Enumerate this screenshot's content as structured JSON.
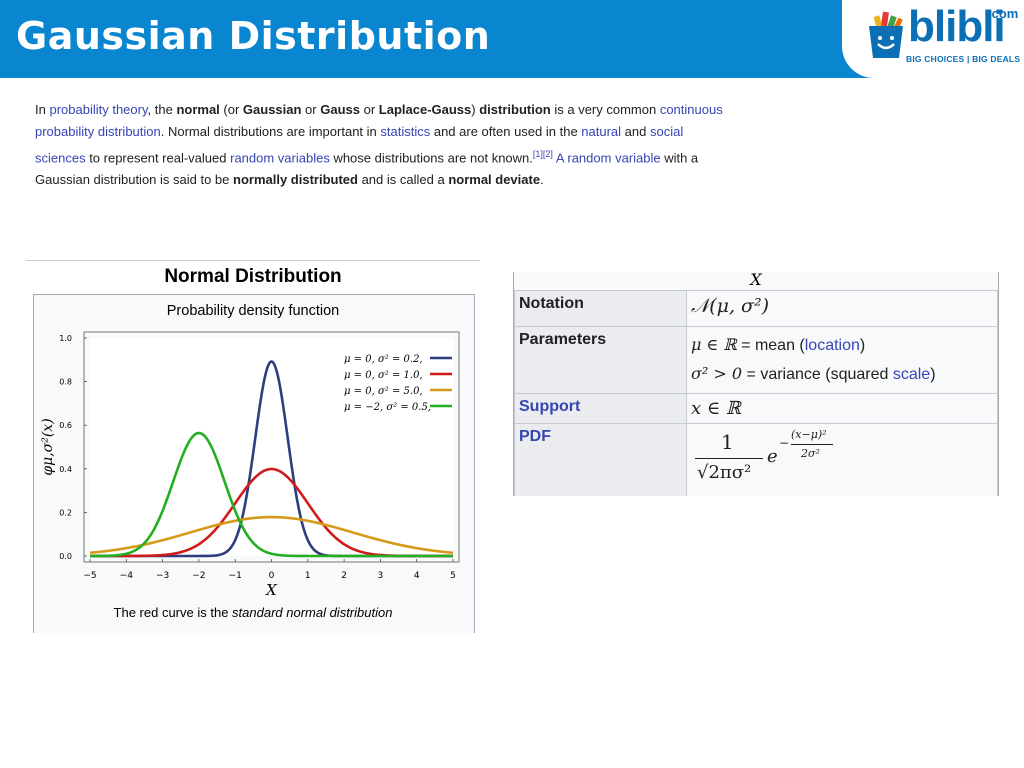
{
  "slide": {
    "title": "Gaussian Distribution"
  },
  "logo": {
    "brand": "blibli",
    "domain": ".com",
    "tagline": "BIG CHOICES | BIG DEALS",
    "brand_color": "#0a6fb5"
  },
  "colors": {
    "topbar": "#0a86d0",
    "link": "#3645b3"
  },
  "intro": {
    "t1": "In ",
    "l1": "probability theory",
    "t2": ", the ",
    "b1": "normal",
    "t3": " (or ",
    "b2": "Gaussian",
    "t4": " or ",
    "b3": "Gauss",
    "t5": " or ",
    "b4": "Laplace-Gauss",
    "t6": ") ",
    "b5": "distribution",
    "t7": " is a very common ",
    "l2": "continuous probability distribution",
    "t8": ". Normal distributions are important in ",
    "l3": "statistics",
    "t9": " and are often used in the ",
    "l4": "natural",
    "t10": " and ",
    "l5": "social sciences",
    "t11": " to represent real-valued ",
    "l6": "random variables",
    "t12": " whose distributions are not known.",
    "sup": "[1][2]",
    "t13": " ",
    "l7": "A random variable",
    "t14": " with a Gaussian distribution is said to be ",
    "b6": "normally distributed",
    "t15": " and is called a ",
    "b7": "normal deviate",
    "t16": "."
  },
  "figure": {
    "heading": "Normal Distribution",
    "subtitle": "Probability density function",
    "caption_prefix": "The red curve is the ",
    "caption_em": "standard normal distribution",
    "ylabel": "φμ,σ²(x)",
    "xlabel": "X"
  },
  "chart_data": {
    "type": "line",
    "title": "Probability density function",
    "xlabel": "X",
    "ylabel": "φμ,σ²(x)",
    "xlim": [
      -5,
      5
    ],
    "ylim": [
      0,
      1.0
    ],
    "x_ticks": [
      "−5",
      "−4",
      "−3",
      "−2",
      "−1",
      "0",
      "1",
      "2",
      "3",
      "4",
      "5"
    ],
    "y_ticks": [
      "0.0",
      "0.2",
      "0.4",
      "0.6",
      "0.8",
      "1.0"
    ],
    "legend_position": "top-right",
    "series": [
      {
        "name": "μ = 0, σ² = 0.2,",
        "mu": 0,
        "sigma2": 0.2,
        "color": "#2c3e7e"
      },
      {
        "name": "μ = 0, σ² = 1.0,",
        "mu": 0,
        "sigma2": 1.0,
        "color": "#d01b1b"
      },
      {
        "name": "μ = 0, σ² = 5.0,",
        "mu": 0,
        "sigma2": 5.0,
        "color": "#d59b16"
      },
      {
        "name": "μ = −2, σ² = 0.5,",
        "mu": -2,
        "sigma2": 0.5,
        "color": "#22b022"
      }
    ]
  },
  "infobox": {
    "header_symbol": "X",
    "rows": {
      "notation": {
        "label": "Notation",
        "value": "𝒩(μ, σ²)"
      },
      "parameters": {
        "label": "Parameters",
        "p1_math": "μ ∈ ℝ",
        "p1_text": " = mean (",
        "p1_link": "location",
        "p1_end": ")",
        "p2_math": "σ² > 0",
        "p2_text": " = variance (squared ",
        "p2_link": "scale",
        "p2_end": ")"
      },
      "support": {
        "label": "Support",
        "value": "x ∈ ℝ"
      },
      "pdf": {
        "label": "PDF",
        "num": "1",
        "den": "√2πσ²",
        "base": "e",
        "exp_num": "(x−μ)²",
        "exp_den": "2σ²",
        "minus": "−"
      }
    }
  }
}
